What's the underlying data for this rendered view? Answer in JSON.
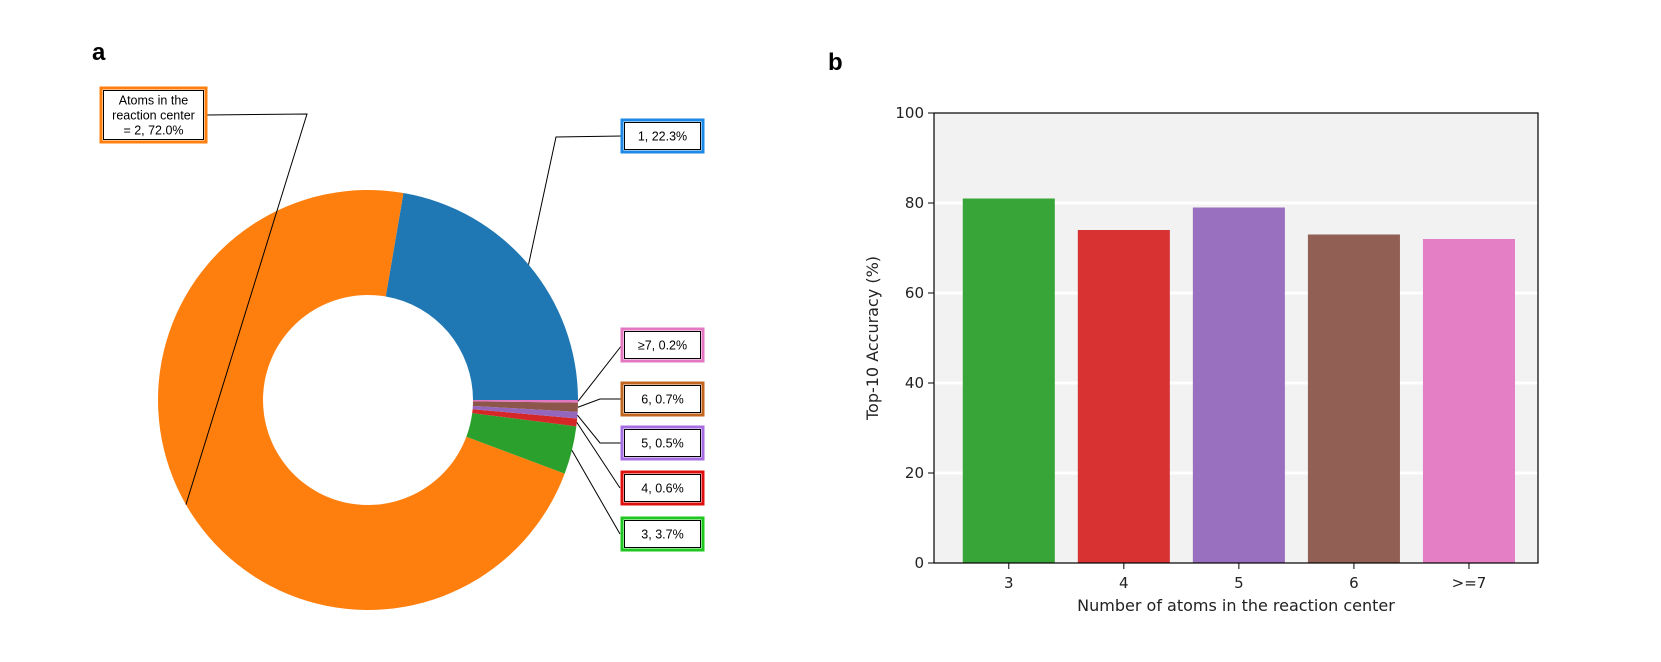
{
  "panel_a": {
    "letter": "a"
  },
  "panel_b": {
    "letter": "b"
  },
  "colors": {
    "c2": "#ff7f0e",
    "c1": "#1f77b4",
    "c7": "#e377c2",
    "c6": "#8c564b",
    "c5": "#9467bd",
    "c4": "#d62728",
    "c3": "#2ca02c",
    "c1_border": "#1e88e5",
    "c3_border": "#1ec81e",
    "c5_border": "#a66ee0",
    "c7_border": "#e377c2",
    "c6_border": "#c0661f",
    "c4_border": "#e01010",
    "plot_bg": "#f2f2f2"
  },
  "chart_data": [
    {
      "type": "pie",
      "style": "donut",
      "slices": [
        {
          "key": "s2",
          "label_lines": [
            "Atoms in the",
            "reaction center",
            "= 2, 72.0%"
          ],
          "value": 72.0,
          "color": "#ff7f0e"
        },
        {
          "key": "s1",
          "label_lines": [
            "1, 22.3%"
          ],
          "value": 22.3,
          "color": "#1f77b4"
        },
        {
          "key": "s7",
          "label_lines": [
            "≥7, 0.2%"
          ],
          "value": 0.2,
          "color": "#e377c2"
        },
        {
          "key": "s6",
          "label_lines": [
            "6, 0.7%"
          ],
          "value": 0.7,
          "color": "#8c564b"
        },
        {
          "key": "s5",
          "label_lines": [
            "5, 0.5%"
          ],
          "value": 0.5,
          "color": "#9467bd"
        },
        {
          "key": "s4",
          "label_lines": [
            "4, 0.6%"
          ],
          "value": 0.6,
          "color": "#d62728"
        },
        {
          "key": "s3",
          "label_lines": [
            "3, 3.7%"
          ],
          "value": 3.7,
          "color": "#2ca02c"
        }
      ]
    },
    {
      "type": "bar",
      "categories": [
        "3",
        "4",
        "5",
        "6",
        ">=7"
      ],
      "values": [
        81,
        74,
        79,
        73,
        72
      ],
      "colors": [
        "#2ca02c",
        "#d62728",
        "#9467bd",
        "#8c564b",
        "#e377c2"
      ],
      "title": "",
      "xlabel": "Number of atoms in the reaction center",
      "ylabel": "Top-10 Accuracy (%)",
      "ylim": [
        0,
        100
      ],
      "yticks": [
        "0",
        "20",
        "40",
        "60",
        "80",
        "100"
      ],
      "grid": "y"
    }
  ]
}
